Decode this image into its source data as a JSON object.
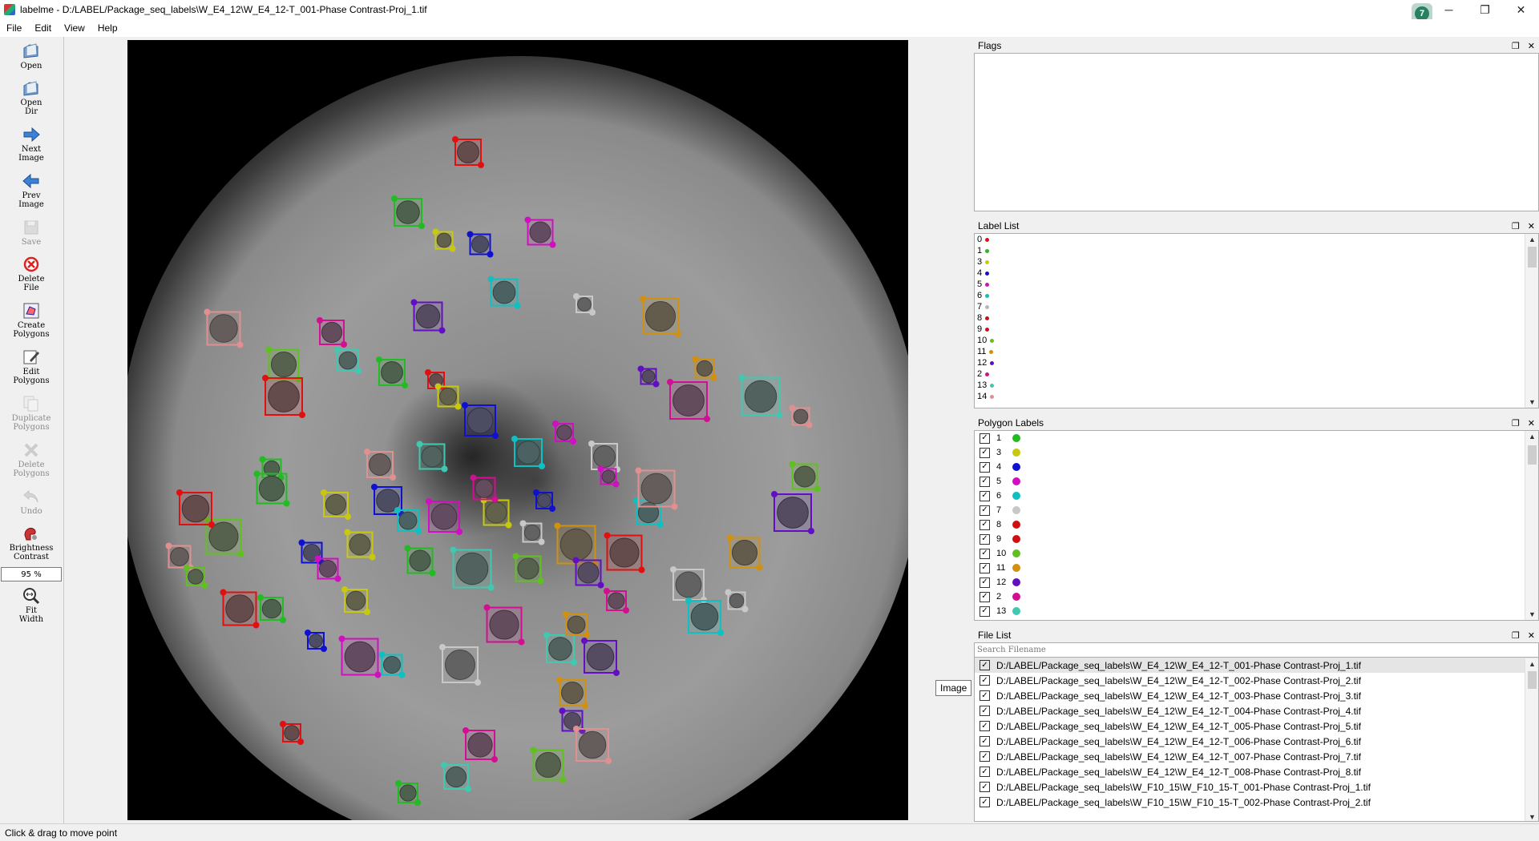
{
  "window": {
    "title": "labelme - D:/LABEL/Package_seq_labels\\W_E4_12\\W_E4_12-T_001-Phase Contrast-Proj_1.tif",
    "avatar_text": "7",
    "minimize": "─",
    "maximize": "❐",
    "close": "✕"
  },
  "menu": [
    "File",
    "Edit",
    "View",
    "Help"
  ],
  "toolbar": [
    {
      "label": "Open",
      "icon": "open-folder-icon",
      "enabled": true
    },
    {
      "label": "Open\nDir",
      "icon": "open-dir-icon",
      "enabled": true
    },
    {
      "label": "Next\nImage",
      "icon": "arrow-right-icon",
      "enabled": true
    },
    {
      "label": "Prev\nImage",
      "icon": "arrow-left-icon",
      "enabled": true
    },
    {
      "label": "Save",
      "icon": "save-icon",
      "enabled": false
    },
    {
      "label": "Delete\nFile",
      "icon": "delete-file-icon",
      "enabled": true
    },
    {
      "label": "Create\nPolygons",
      "icon": "create-polygon-icon",
      "enabled": true
    },
    {
      "label": "Edit\nPolygons",
      "icon": "edit-polygon-icon",
      "enabled": true
    },
    {
      "label": "Duplicate\nPolygons",
      "icon": "duplicate-icon",
      "enabled": false
    },
    {
      "label": "Delete\nPolygons",
      "icon": "delete-polygon-icon",
      "enabled": false
    },
    {
      "label": "Undo",
      "icon": "undo-icon",
      "enabled": false
    },
    {
      "label": "Brightness\nContrast",
      "icon": "brightness-icon",
      "enabled": true
    }
  ],
  "zoom_value": "95 %",
  "fit_width_label": "Fit\nWidth",
  "tooltip": "Image",
  "docks": {
    "flags": {
      "title": "Flags"
    },
    "label_list": {
      "title": "Label List",
      "items": [
        {
          "name": "0",
          "color": "#e01010"
        },
        {
          "name": "1",
          "color": "#22bb22"
        },
        {
          "name": "3",
          "color": "#c8c810"
        },
        {
          "name": "4",
          "color": "#1010d0"
        },
        {
          "name": "5",
          "color": "#d010c0"
        },
        {
          "name": "6",
          "color": "#10c0c0"
        },
        {
          "name": "7",
          "color": "#b8b8b8"
        },
        {
          "name": "8",
          "color": "#d01010"
        },
        {
          "name": "9",
          "color": "#d01010"
        },
        {
          "name": "10",
          "color": "#60c020"
        },
        {
          "name": "11",
          "color": "#d09010"
        },
        {
          "name": "12",
          "color": "#6010c0"
        },
        {
          "name": "2",
          "color": "#d01090"
        },
        {
          "name": "13",
          "color": "#40c8b0"
        },
        {
          "name": "14",
          "color": "#e09090"
        }
      ]
    },
    "polygon_labels": {
      "title": "Polygon Labels",
      "items": [
        {
          "name": "1",
          "color": "#22bb22"
        },
        {
          "name": "3",
          "color": "#c8c810"
        },
        {
          "name": "4",
          "color": "#1010d0"
        },
        {
          "name": "5",
          "color": "#d010c0"
        },
        {
          "name": "6",
          "color": "#10c0c0"
        },
        {
          "name": "7",
          "color": "#c8c8c8"
        },
        {
          "name": "8",
          "color": "#d01010"
        },
        {
          "name": "9",
          "color": "#d01010"
        },
        {
          "name": "10",
          "color": "#60c020"
        },
        {
          "name": "11",
          "color": "#d09010"
        },
        {
          "name": "12",
          "color": "#6010c0"
        },
        {
          "name": "2",
          "color": "#d01090"
        },
        {
          "name": "13",
          "color": "#40c8b0"
        }
      ]
    },
    "file_list": {
      "title": "File List",
      "search_placeholder": "Search Filename",
      "files": [
        "D:/LABEL/Package_seq_labels\\W_E4_12\\W_E4_12-T_001-Phase Contrast-Proj_1.tif",
        "D:/LABEL/Package_seq_labels\\W_E4_12\\W_E4_12-T_002-Phase Contrast-Proj_2.tif",
        "D:/LABEL/Package_seq_labels\\W_E4_12\\W_E4_12-T_003-Phase Contrast-Proj_3.tif",
        "D:/LABEL/Package_seq_labels\\W_E4_12\\W_E4_12-T_004-Phase Contrast-Proj_4.tif",
        "D:/LABEL/Package_seq_labels\\W_E4_12\\W_E4_12-T_005-Phase Contrast-Proj_5.tif",
        "D:/LABEL/Package_seq_labels\\W_E4_12\\W_E4_12-T_006-Phase Contrast-Proj_6.tif",
        "D:/LABEL/Package_seq_labels\\W_E4_12\\W_E4_12-T_007-Phase Contrast-Proj_7.tif",
        "D:/LABEL/Package_seq_labels\\W_E4_12\\W_E4_12-T_008-Phase Contrast-Proj_8.tif",
        "D:/LABEL/Package_seq_labels\\W_F10_15\\W_F10_15-T_001-Phase Contrast-Proj_1.tif",
        "D:/LABEL/Package_seq_labels\\W_F10_15\\W_F10_15-T_002-Phase Contrast-Proj_2.tif"
      ]
    }
  },
  "status": "Click & drag to move point"
}
